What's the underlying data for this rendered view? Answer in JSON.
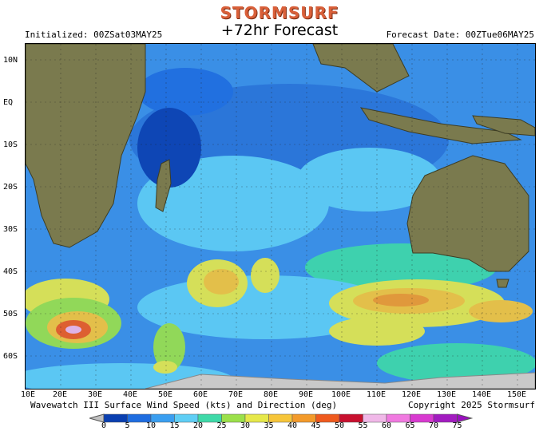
{
  "brand": "STORMSURF",
  "title": "+72hr Forecast",
  "initialized": "Initialized: 00ZSat03MAY25",
  "forecast_date": "Forecast Date: 00ZTue06MAY25",
  "lat_labels": [
    "10N",
    "EQ",
    "10S",
    "20S",
    "30S",
    "40S",
    "50S",
    "60S"
  ],
  "lon_labels": [
    "10E",
    "20E",
    "30E",
    "40E",
    "50E",
    "60E",
    "70E",
    "80E",
    "90E",
    "100E",
    "110E",
    "120E",
    "130E",
    "140E",
    "150E"
  ],
  "footer_left": "Wavewatch III Surface Wind Speed (kts) and Direction (deg)",
  "copyright": "Copyright 2025 Stormsurf",
  "scale": {
    "ticks": [
      "0",
      "5",
      "10",
      "15",
      "20",
      "25",
      "30",
      "35",
      "40",
      "45",
      "50",
      "55",
      "60",
      "65",
      "70",
      "75"
    ],
    "colors": [
      "#0a3fb0",
      "#1f6de0",
      "#3a9ef0",
      "#5fcef5",
      "#3fd9a8",
      "#9be04a",
      "#e6e84a",
      "#f6c53a",
      "#f39a2a",
      "#ef5a1e",
      "#c8102e",
      "#f0b8e8",
      "#f07ae0",
      "#d83ad0",
      "#a21cc0"
    ]
  },
  "map": {
    "ocean_base": "#3a8fe6",
    "land": "#7a7a4e",
    "ice": "#c9c9c9"
  }
}
